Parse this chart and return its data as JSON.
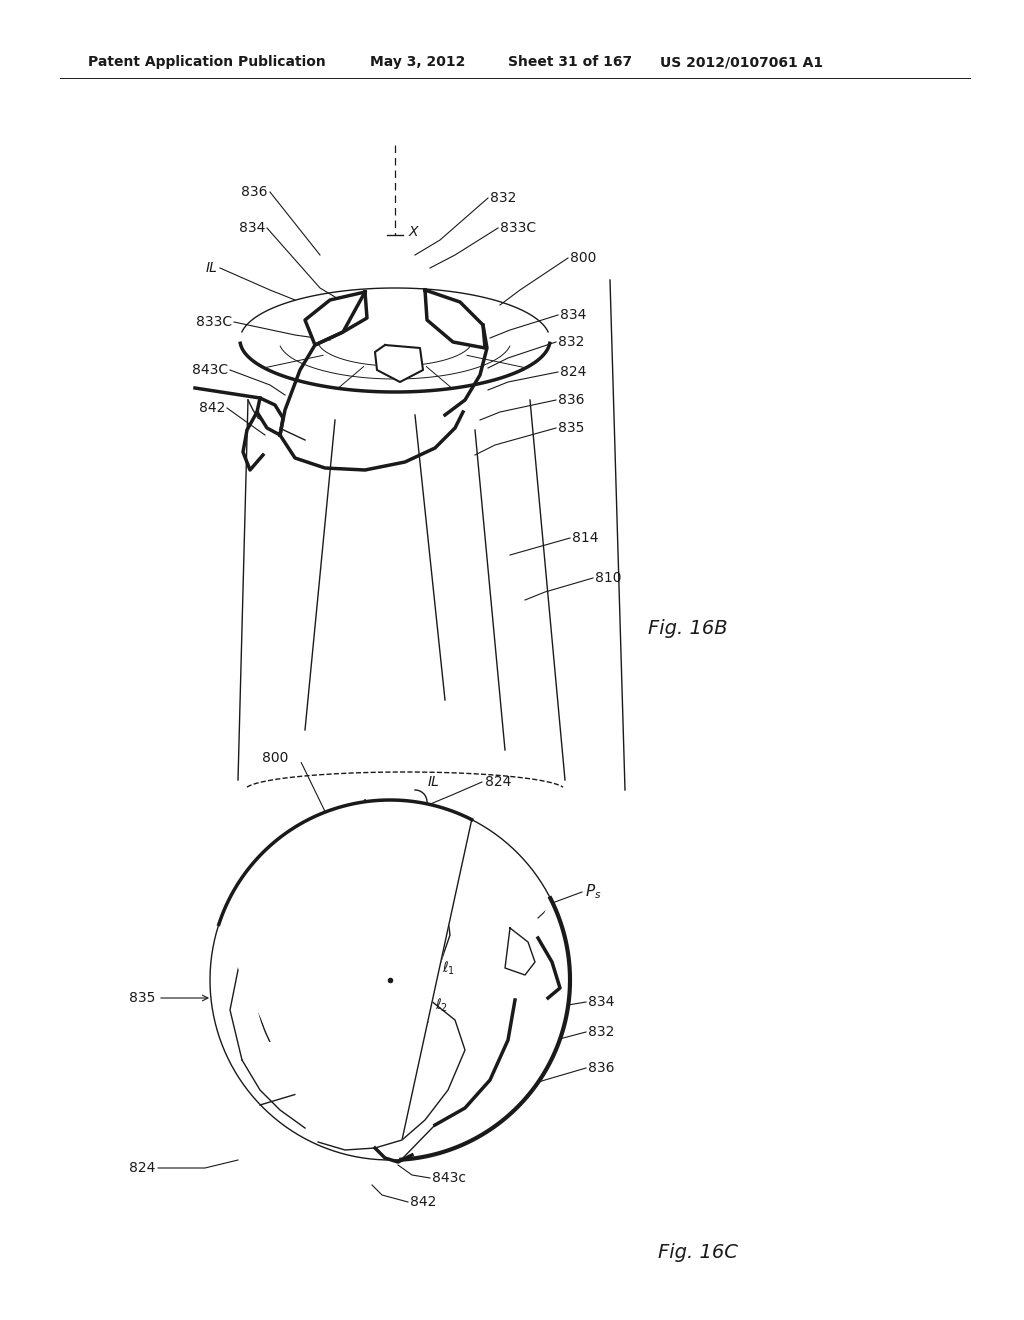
{
  "bg_color": "#ffffff",
  "line_color": "#1a1a1a",
  "thick": 2.5,
  "thin": 1.0,
  "med": 1.5,
  "fs": 10,
  "fs_fig": 13,
  "header1": "Patent Application Publication",
  "header2": "May 3, 2012",
  "header3": "Sheet 31 of 167",
  "header4": "US 2012/0107061 A1",
  "fig16b": "Fig. 16B",
  "fig16c": "Fig. 16C"
}
